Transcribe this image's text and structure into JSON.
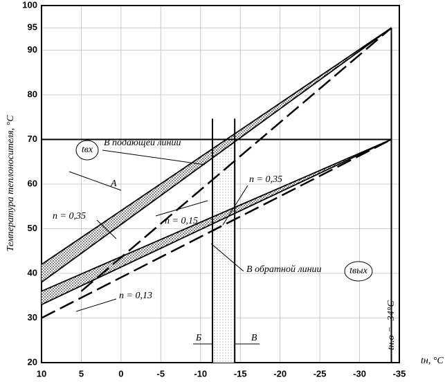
{
  "chart_data": {
    "type": "line",
    "y_label": "Температура теплоносителя, °C",
    "x_label": "tн, °C",
    "xlim": [
      10,
      -35
    ],
    "ylim": [
      20,
      100
    ],
    "xticks": [
      10,
      5,
      0,
      -5,
      -10,
      -15,
      -20,
      -25,
      -30,
      -35
    ],
    "yticks": [
      20,
      30,
      40,
      50,
      60,
      70,
      80,
      90,
      95,
      100
    ],
    "grid": true,
    "series": [
      {
        "x": [
          10,
          -34
        ],
        "values": [
          42,
          95
        ],
        "color": "#000000",
        "style": "solid",
        "hatch_to_next": true
      },
      {
        "x": [
          10,
          -34
        ],
        "values": [
          38,
          95
        ],
        "color": "#000000",
        "style": "solid"
      },
      {
        "x": [
          5,
          -34
        ],
        "values": [
          36,
          95
        ],
        "color": "#000000",
        "style": "dashed"
      },
      {
        "x": [
          10,
          -34
        ],
        "values": [
          36,
          70
        ],
        "color": "#000000",
        "style": "solid",
        "hatch_to_next": true
      },
      {
        "x": [
          10,
          -34
        ],
        "values": [
          33,
          70
        ],
        "color": "#000000",
        "style": "solid"
      },
      {
        "x": [
          10,
          -34
        ],
        "values": [
          30,
          70
        ],
        "color": "#000000",
        "style": "dashed"
      }
    ],
    "hline": {
      "y": 70
    },
    "vline": {
      "x": -34
    },
    "markers": [
      {
        "x": -11.5,
        "label": "Б"
      },
      {
        "x": -14.3,
        "label": "В"
      }
    ],
    "annotations": [
      "В подающей линии",
      "А",
      "n = 0,35",
      "n = 0,15",
      "n = 0,35",
      "В обратной линии",
      "n = 0,13",
      "tвх",
      "tвых",
      "tн.о = -34°C"
    ]
  }
}
